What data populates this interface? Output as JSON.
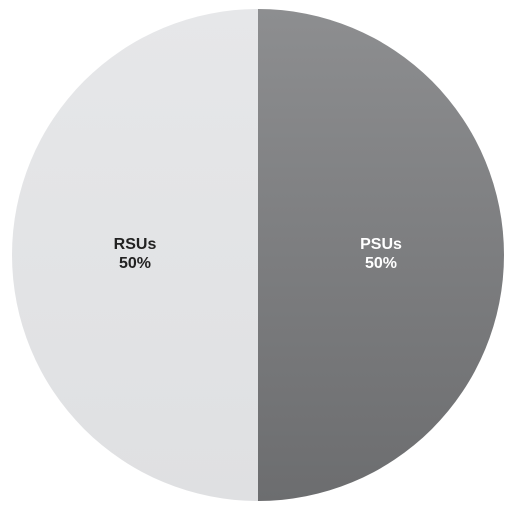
{
  "chart_data": {
    "type": "pie",
    "title": "",
    "slices": [
      {
        "label": "PSUs",
        "value": 50,
        "percent_label": "50%",
        "color": "#7b7c7e",
        "label_color": "#ffffff"
      },
      {
        "label": "RSUs",
        "value": 50,
        "percent_label": "50%",
        "color": "#e3e4e6",
        "label_color": "#222222"
      }
    ],
    "legend": "none",
    "start_angle_deg": 0,
    "direction": "clockwise"
  }
}
